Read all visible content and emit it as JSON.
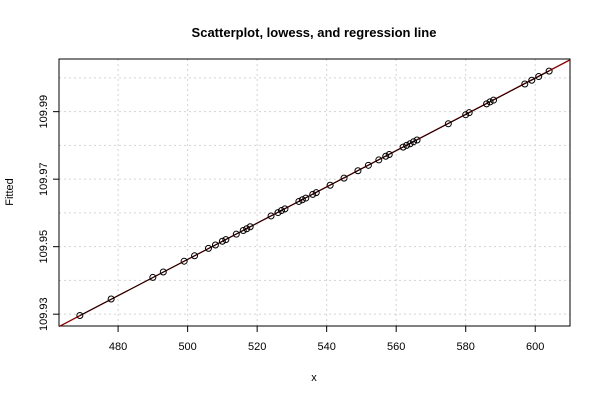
{
  "chart_data": {
    "type": "scatter",
    "title": "Scatterplot, lowess, and regression line",
    "xlabel": "x",
    "ylabel": "Fitted",
    "xlim": [
      463,
      610
    ],
    "ylim": [
      109.9265,
      110.0056
    ],
    "xticks": [
      480,
      500,
      520,
      540,
      560,
      580,
      600
    ],
    "yticks": [
      109.93,
      109.95,
      109.97,
      109.99
    ],
    "ytick_labels": [
      "109.93",
      "109.95",
      "109.97",
      "109.99"
    ],
    "grid": true,
    "points": {
      "x": [
        469,
        478,
        490,
        493,
        499,
        502,
        506,
        508,
        510,
        511,
        514,
        516,
        517,
        518,
        524,
        526,
        527,
        528,
        532,
        533,
        534,
        536,
        537,
        541,
        545,
        549,
        552,
        555,
        557,
        558,
        562,
        563,
        564,
        565,
        566,
        575,
        580,
        581,
        586,
        587,
        588,
        597,
        599,
        601,
        604
      ],
      "y": [
        109.9296,
        109.9345,
        109.9409,
        109.9425,
        109.9457,
        109.9473,
        109.9495,
        109.9505,
        109.9516,
        109.9521,
        109.9537,
        109.9548,
        109.9553,
        109.9559,
        109.9591,
        109.9601,
        109.9607,
        109.9612,
        109.9634,
        109.9639,
        109.9644,
        109.9655,
        109.966,
        109.9682,
        109.9703,
        109.9725,
        109.9741,
        109.9757,
        109.9768,
        109.9773,
        109.9795,
        109.98,
        109.9805,
        109.9811,
        109.9816,
        109.9864,
        109.9891,
        109.9897,
        109.9923,
        109.9929,
        109.9934,
        109.9982,
        109.9993,
        110.0004,
        110.002
      ]
    },
    "regression_line": {
      "color": "#8b0000",
      "x": [
        463,
        610
      ],
      "y": [
        109.92634,
        110.00534
      ]
    },
    "lowess_line": {
      "color": "#000000",
      "x": [
        469,
        604
      ],
      "y": [
        109.9296,
        110.002
      ]
    },
    "colors": {
      "points": "#000000",
      "grid": "#d3d3d3",
      "axes": "#000000"
    }
  }
}
